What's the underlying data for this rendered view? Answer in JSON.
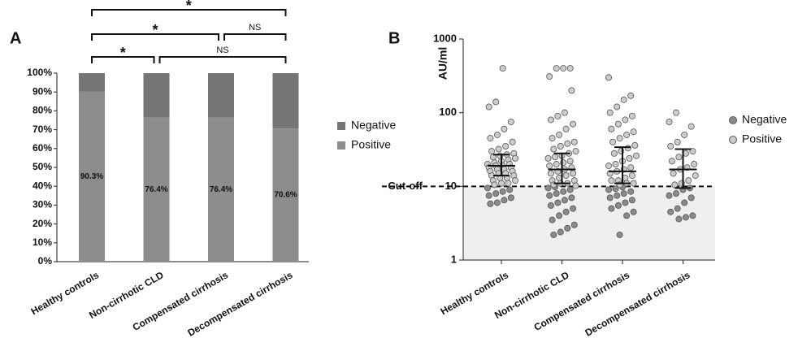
{
  "chart_data": [
    {
      "type": "bar",
      "stacked": true,
      "panel": "A",
      "categories": [
        "Healthy controls",
        "Non-cirrhotic CLD",
        "Compensated cirrhosis",
        "Decompensated cirrhosis"
      ],
      "series": [
        {
          "name": "Negative",
          "color": "#767676",
          "values": [
            9.7,
            23.6,
            23.6,
            29.4
          ]
        },
        {
          "name": "Positive",
          "color": "#8d8d8d",
          "values": [
            90.3,
            76.4,
            76.4,
            70.6
          ],
          "value_labels": [
            "90.3%",
            "76.4%",
            "76.4%",
            "70.6%"
          ]
        }
      ],
      "ylim": [
        0,
        100
      ],
      "yticks": [
        {
          "value": 0,
          "label": "0%"
        },
        {
          "value": 10,
          "label": "10%"
        },
        {
          "value": 20,
          "label": "20%"
        },
        {
          "value": 30,
          "label": "30%"
        },
        {
          "value": 40,
          "label": "40%"
        },
        {
          "value": 50,
          "label": "50%"
        },
        {
          "value": 60,
          "label": "60%"
        },
        {
          "value": 70,
          "label": "70%"
        },
        {
          "value": 80,
          "label": "80%"
        },
        {
          "value": 90,
          "label": "90%"
        },
        {
          "value": 100,
          "label": "100%"
        }
      ],
      "comparisons": [
        {
          "from": 0,
          "to": 3,
          "label": "*"
        },
        {
          "from": 0,
          "to": 2,
          "label": "*"
        },
        {
          "from": 2,
          "to": 3,
          "label": "NS"
        },
        {
          "from": 0,
          "to": 1,
          "label": "*"
        },
        {
          "from": 1,
          "to": 3,
          "label": "NS"
        }
      ]
    },
    {
      "type": "scatter",
      "panel": "B",
      "ylabel": "AU/ml",
      "log_y": true,
      "categories": [
        "Healthy controls",
        "Non-cirrhotic CLD",
        "Compensated cirrhosis",
        "Decompensated cirrhosis"
      ],
      "ylim": [
        1,
        1000
      ],
      "yticks": [
        1,
        10,
        100,
        1000
      ],
      "cutoff": {
        "value": 10,
        "label": "Cut-off"
      },
      "series": [
        {
          "name": "Negative",
          "color": "#8a8a8a",
          "groups": [
            [
              9.5,
              9,
              8.5,
              8,
              7.5,
              7,
              6.5,
              6,
              5.8
            ],
            [
              9.8,
              9.5,
              9,
              8.5,
              8,
              7.5,
              7,
              6.5,
              6,
              5.5,
              5,
              4.5,
              4,
              3.5,
              3,
              2.7,
              2.4,
              2.2
            ],
            [
              9.8,
              9.3,
              9,
              8.5,
              8,
              7.5,
              7,
              6.5,
              6,
              5.5,
              5,
              4.5,
              4,
              2.2
            ],
            [
              9.5,
              9,
              8,
              7.5,
              7,
              6,
              5,
              4.5,
              4,
              3.8,
              3.6
            ]
          ]
        },
        {
          "name": "Positive",
          "color": "#cccccc",
          "groups": [
            [
              400,
              140,
              120,
              75,
              60,
              50,
              45,
              40,
              35,
              32,
              30,
              28,
              27,
              26,
              25,
              24,
              23,
              22,
              21,
              20,
              20,
              19,
              19,
              18,
              18,
              17,
              17,
              16,
              16,
              15,
              15,
              14,
              14,
              13,
              13,
              12,
              12,
              11,
              11,
              10.5
            ],
            [
              400,
              400,
              400,
              310,
              200,
              100,
              90,
              80,
              70,
              60,
              50,
              45,
              40,
              38,
              35,
              32,
              30,
              28,
              26,
              25,
              24,
              22,
              21,
              20,
              19,
              18,
              17,
              16,
              15,
              15,
              14,
              13,
              12,
              12,
              11,
              11,
              10.5,
              10.2
            ],
            [
              300,
              170,
              150,
              120,
              100,
              90,
              80,
              70,
              60,
              55,
              50,
              45,
              40,
              36,
              33,
              30,
              28,
              26,
              24,
              22,
              20,
              19,
              18,
              17,
              16,
              15,
              14,
              13,
              12,
              12,
              11,
              11,
              10.5
            ],
            [
              100,
              75,
              65,
              50,
              40,
              35,
              30,
              28,
              25,
              22,
              20,
              18,
              17,
              15,
              14,
              12,
              11,
              10.5
            ]
          ]
        }
      ],
      "medians": [
        19,
        17,
        16,
        17
      ],
      "q1": [
        14,
        11,
        11,
        9.5
      ],
      "q3": [
        27,
        28,
        34,
        32
      ]
    }
  ]
}
